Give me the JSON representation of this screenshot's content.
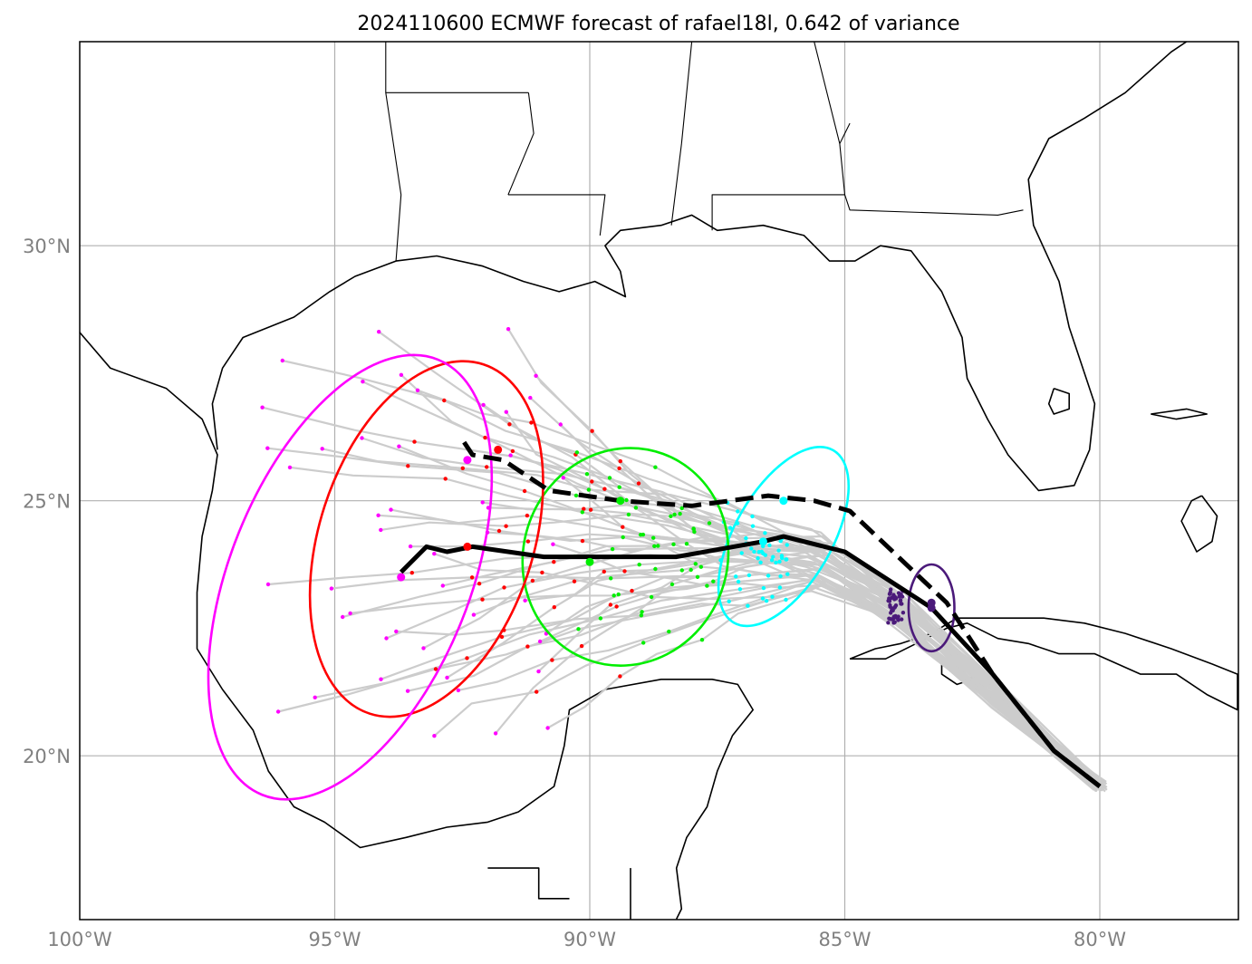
{
  "title": "2024110600 ECMWF forecast of rafael18l, 0.642 of variance",
  "map": {
    "extent_lon": [
      -100,
      -77.3
    ],
    "extent_lat": [
      16.8,
      34.0
    ],
    "lon_ticks": [
      {
        "value": -100,
        "label": "100°W"
      },
      {
        "value": -95,
        "label": "95°W"
      },
      {
        "value": -90,
        "label": "90°W"
      },
      {
        "value": -85,
        "label": "85°W"
      },
      {
        "value": -80,
        "label": "80°W"
      }
    ],
    "lat_ticks": [
      {
        "value": 20,
        "label": "20°N"
      },
      {
        "value": 25,
        "label": "25°N"
      },
      {
        "value": 30,
        "label": "30°N"
      }
    ],
    "colors": {
      "ensemble": "#cccccc",
      "coast": "#000000",
      "grid": "#aaaaaa",
      "mean_track": "#000000",
      "day1": "#4b1a7a",
      "day2": "#00ffff",
      "day3": "#00ee00",
      "day4": "#ff0000",
      "day5": "#ff00ff"
    }
  },
  "tracks": {
    "mean_solid": [
      [
        -80.0,
        19.4
      ],
      [
        -80.9,
        20.1
      ],
      [
        -82.1,
        21.6
      ],
      [
        -83.3,
        22.9
      ],
      [
        -85.0,
        24.0
      ],
      [
        -86.2,
        24.3
      ],
      [
        -86.6,
        24.2
      ],
      [
        -88.3,
        23.9
      ],
      [
        -89.3,
        23.9
      ],
      [
        -90.9,
        23.9
      ],
      [
        -92.3,
        24.1
      ],
      [
        -92.8,
        24.0
      ],
      [
        -93.2,
        24.1
      ],
      [
        -93.7,
        23.6
      ]
    ],
    "mean_dashed": [
      [
        -80.0,
        19.4
      ],
      [
        -80.9,
        20.1
      ],
      [
        -82.1,
        21.6
      ],
      [
        -83.0,
        23.0
      ],
      [
        -84.9,
        24.8
      ],
      [
        -85.6,
        25.0
      ],
      [
        -86.5,
        25.1
      ],
      [
        -88.0,
        24.9
      ],
      [
        -89.4,
        25.0
      ],
      [
        -90.8,
        25.2
      ],
      [
        -91.7,
        25.8
      ],
      [
        -92.3,
        25.9
      ],
      [
        -92.5,
        26.2
      ]
    ],
    "mean_points_solid": [
      [
        -83.3,
        22.9
      ],
      [
        -86.6,
        24.2
      ],
      [
        -90.0,
        23.8
      ],
      [
        -92.4,
        24.1
      ],
      [
        -93.7,
        23.5
      ]
    ],
    "mean_points_dashed": [
      [
        -83.3,
        23.0
      ],
      [
        -86.2,
        25.0
      ],
      [
        -89.4,
        25.0
      ],
      [
        -91.8,
        26.0
      ],
      [
        -92.4,
        25.8
      ]
    ]
  },
  "ellipses": [
    {
      "name": "day1",
      "color": "#4b1a7a",
      "cx": -83.3,
      "cy": 22.9,
      "rx": 0.45,
      "ry": 0.85,
      "angle": 0
    },
    {
      "name": "day2",
      "color": "#00ffff",
      "cx": -86.2,
      "cy": 24.3,
      "rx": 0.95,
      "ry": 1.95,
      "angle": 30
    },
    {
      "name": "day3",
      "color": "#00ee00",
      "cx": -89.3,
      "cy": 23.9,
      "rx": 2.0,
      "ry": 2.15,
      "angle": 20
    },
    {
      "name": "day4",
      "color": "#ff0000",
      "cx": -93.2,
      "cy": 24.25,
      "rx": 2.1,
      "ry": 3.6,
      "angle": 18
    },
    {
      "name": "day5",
      "color": "#ff00ff",
      "cx": -94.7,
      "cy": 23.5,
      "rx": 2.35,
      "ry": 4.6,
      "angle": 22
    }
  ]
}
